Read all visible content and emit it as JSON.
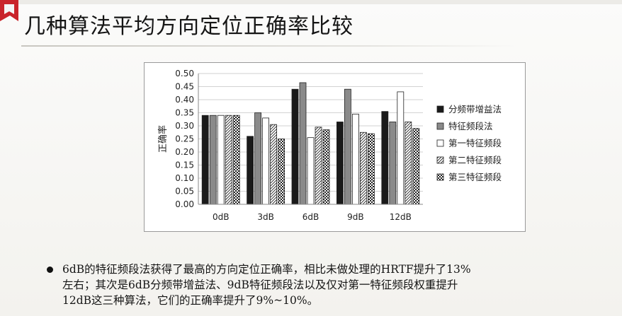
{
  "slide": {
    "title": "几种算法平均方向定位正确率比较",
    "caption_lines": [
      "6dB的特征频段法获得了最高的方向定位正确率，相比未做处理的HRTF提升了13%",
      "左右；其次是6dB分频带增益法、9dB特征频段法以及仅对第一特征频段权重提升",
      "12dB这三种算法，它们的正确率提升了9%~10%。"
    ]
  },
  "chart_data": {
    "type": "bar",
    "ylabel": "正确率",
    "xlabel": "",
    "ylim": [
      0,
      0.5
    ],
    "yticks": [
      "0.00",
      "0.05",
      "0.10",
      "0.15",
      "0.20",
      "0.25",
      "0.30",
      "0.35",
      "0.40",
      "0.45",
      "0.50"
    ],
    "categories": [
      "0dB",
      "3dB",
      "6dB",
      "9dB",
      "12dB"
    ],
    "grid": true,
    "legend_position": "right",
    "series": [
      {
        "name": "分频带增益法",
        "pattern": "solid-dark",
        "color": "#1a1a1a",
        "values": [
          0.34,
          0.26,
          0.44,
          0.315,
          0.355
        ]
      },
      {
        "name": "特征频段法",
        "pattern": "solid-gray",
        "color": "#8a8a8a",
        "values": [
          0.34,
          0.35,
          0.465,
          0.44,
          0.315
        ]
      },
      {
        "name": "第一特征频段",
        "pattern": "hollow",
        "color": "#ffffff",
        "values": [
          0.34,
          0.33,
          0.255,
          0.345,
          0.43
        ]
      },
      {
        "name": "第二特征频段",
        "pattern": "diagonal-hatch",
        "color": "#ffffff",
        "values": [
          0.34,
          0.305,
          0.295,
          0.275,
          0.315
        ]
      },
      {
        "name": "第三特征频段",
        "pattern": "checker",
        "color": "#ffffff",
        "values": [
          0.34,
          0.25,
          0.285,
          0.27,
          0.29
        ]
      }
    ]
  }
}
